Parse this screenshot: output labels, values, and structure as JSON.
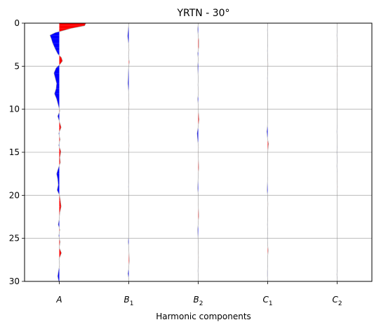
{
  "chart_data": {
    "type": "area",
    "title": "YRTN - 30°",
    "xlabel": "Harmonic components",
    "ylabel": "",
    "ylim": [
      30,
      0
    ],
    "yticks": [
      0,
      5,
      10,
      15,
      20,
      25,
      30
    ],
    "grid": "horizontal",
    "positive_color": "#ff0000",
    "negative_color": "#0000ff",
    "series": [
      {
        "label": "A",
        "sub": "",
        "trace": [
          [
            0.0,
            1.0
          ],
          [
            0.3,
            0.95
          ],
          [
            0.6,
            0.45
          ],
          [
            0.9,
            0.1
          ],
          [
            1.1,
            -0.15
          ],
          [
            1.4,
            -0.35
          ],
          [
            1.8,
            -0.3
          ],
          [
            2.3,
            -0.25
          ],
          [
            2.8,
            -0.18
          ],
          [
            3.2,
            -0.12
          ],
          [
            3.6,
            -0.05
          ],
          [
            4.0,
            0.08
          ],
          [
            4.4,
            0.12
          ],
          [
            4.8,
            0.02
          ],
          [
            5.2,
            -0.12
          ],
          [
            5.8,
            -0.2
          ],
          [
            6.4,
            -0.15
          ],
          [
            7.0,
            -0.1
          ],
          [
            7.6,
            -0.12
          ],
          [
            8.2,
            -0.18
          ],
          [
            8.8,
            -0.1
          ],
          [
            9.5,
            -0.04
          ],
          [
            10.2,
            0.02
          ],
          [
            10.8,
            -0.06
          ],
          [
            11.4,
            0.0
          ],
          [
            12.1,
            0.07
          ],
          [
            12.8,
            -0.02
          ],
          [
            13.5,
            0.03
          ],
          [
            14.2,
            -0.02
          ],
          [
            14.9,
            0.06
          ],
          [
            15.6,
            0.02
          ],
          [
            16.2,
            0.04
          ],
          [
            16.8,
            -0.03
          ],
          [
            17.5,
            -0.1
          ],
          [
            18.1,
            -0.06
          ],
          [
            18.8,
            -0.04
          ],
          [
            19.4,
            -0.08
          ],
          [
            20.0,
            0.01
          ],
          [
            20.6,
            0.04
          ],
          [
            21.3,
            0.07
          ],
          [
            22.0,
            0.02
          ],
          [
            22.7,
            0.0
          ],
          [
            23.4,
            -0.04
          ],
          [
            24.0,
            0.02
          ],
          [
            24.7,
            -0.02
          ],
          [
            25.4,
            0.03
          ],
          [
            26.1,
            0.0
          ],
          [
            26.7,
            0.08
          ],
          [
            27.4,
            -0.01
          ],
          [
            28.1,
            0.01
          ],
          [
            28.8,
            -0.03
          ],
          [
            29.4,
            -0.06
          ],
          [
            30.0,
            -0.02
          ]
        ]
      },
      {
        "label": "B",
        "sub": "1",
        "trace": [
          [
            0.0,
            0.0
          ],
          [
            0.8,
            -0.02
          ],
          [
            1.5,
            -0.04
          ],
          [
            2.3,
            -0.01
          ],
          [
            3.1,
            0.01
          ],
          [
            3.8,
            -0.01
          ],
          [
            4.5,
            0.02
          ],
          [
            5.3,
            -0.01
          ],
          [
            6.2,
            -0.02
          ],
          [
            7.0,
            -0.03
          ],
          [
            7.8,
            -0.01
          ],
          [
            8.6,
            0.0
          ],
          [
            9.4,
            0.01
          ],
          [
            10.2,
            0.0
          ],
          [
            11.0,
            -0.01
          ],
          [
            11.8,
            0.0
          ],
          [
            12.6,
            -0.01
          ],
          [
            13.4,
            0.0
          ],
          [
            14.2,
            0.01
          ],
          [
            15.0,
            0.0
          ],
          [
            15.8,
            0.0
          ],
          [
            16.6,
            0.0
          ],
          [
            17.4,
            0.0
          ],
          [
            18.2,
            0.0
          ],
          [
            19.0,
            -0.01
          ],
          [
            19.8,
            0.0
          ],
          [
            20.6,
            0.0
          ],
          [
            21.4,
            0.0
          ],
          [
            22.2,
            0.0
          ],
          [
            23.0,
            0.0
          ],
          [
            23.8,
            0.0
          ],
          [
            24.6,
            0.0
          ],
          [
            25.4,
            -0.02
          ],
          [
            26.1,
            0.0
          ],
          [
            26.8,
            0.01
          ],
          [
            27.6,
            0.02
          ],
          [
            28.4,
            0.0
          ],
          [
            29.1,
            -0.03
          ],
          [
            29.7,
            0.0
          ],
          [
            30.0,
            0.0
          ]
        ]
      },
      {
        "label": "B",
        "sub": "2",
        "trace": [
          [
            0.0,
            0.0
          ],
          [
            0.7,
            -0.02
          ],
          [
            1.2,
            -0.01
          ],
          [
            2.0,
            0.02
          ],
          [
            2.8,
            0.02
          ],
          [
            3.5,
            -0.02
          ],
          [
            4.2,
            0.0
          ],
          [
            5.0,
            -0.02
          ],
          [
            5.8,
            -0.01
          ],
          [
            6.5,
            0.0
          ],
          [
            7.2,
            -0.01
          ],
          [
            8.0,
            0.01
          ],
          [
            8.8,
            -0.02
          ],
          [
            9.6,
            0.0
          ],
          [
            10.4,
            0.01
          ],
          [
            11.2,
            0.03
          ],
          [
            12.0,
            0.0
          ],
          [
            12.8,
            -0.04
          ],
          [
            13.6,
            -0.02
          ],
          [
            14.4,
            0.01
          ],
          [
            15.2,
            0.0
          ],
          [
            16.0,
            0.01
          ],
          [
            16.8,
            0.02
          ],
          [
            17.6,
            0.0
          ],
          [
            18.4,
            -0.01
          ],
          [
            19.2,
            -0.02
          ],
          [
            20.0,
            0.0
          ],
          [
            20.8,
            0.0
          ],
          [
            21.6,
            0.01
          ],
          [
            22.4,
            0.02
          ],
          [
            23.2,
            0.0
          ],
          [
            24.0,
            -0.02
          ],
          [
            24.8,
            -0.01
          ],
          [
            25.6,
            0.0
          ],
          [
            26.4,
            0.0
          ],
          [
            27.2,
            0.01
          ],
          [
            28.0,
            0.0
          ],
          [
            28.8,
            -0.01
          ],
          [
            29.4,
            0.0
          ],
          [
            30.0,
            0.0
          ]
        ]
      },
      {
        "label": "C",
        "sub": "1",
        "trace": [
          [
            0.0,
            0.0
          ],
          [
            0.8,
            -0.01
          ],
          [
            1.6,
            0.0
          ],
          [
            2.4,
            0.0
          ],
          [
            3.2,
            -0.01
          ],
          [
            4.0,
            0.0
          ],
          [
            4.8,
            0.01
          ],
          [
            5.6,
            0.0
          ],
          [
            6.4,
            -0.01
          ],
          [
            7.2,
            0.0
          ],
          [
            8.0,
            0.0
          ],
          [
            8.8,
            0.0
          ],
          [
            9.6,
            0.0
          ],
          [
            10.4,
            0.0
          ],
          [
            11.2,
            0.0
          ],
          [
            12.0,
            -0.01
          ],
          [
            12.6,
            -0.03
          ],
          [
            13.3,
            -0.01
          ],
          [
            14.0,
            0.03
          ],
          [
            14.7,
            0.01
          ],
          [
            15.4,
            0.0
          ],
          [
            16.2,
            0.0
          ],
          [
            17.0,
            0.0
          ],
          [
            17.8,
            0.0
          ],
          [
            18.6,
            -0.01
          ],
          [
            19.4,
            -0.02
          ],
          [
            20.2,
            0.0
          ],
          [
            21.0,
            0.01
          ],
          [
            21.8,
            0.0
          ],
          [
            22.6,
            0.0
          ],
          [
            23.4,
            -0.01
          ],
          [
            24.2,
            0.0
          ],
          [
            25.0,
            -0.01
          ],
          [
            25.7,
            0.0
          ],
          [
            26.4,
            0.02
          ],
          [
            27.2,
            0.0
          ],
          [
            28.0,
            0.0
          ],
          [
            28.8,
            -0.01
          ],
          [
            29.4,
            -0.01
          ],
          [
            30.0,
            0.0
          ]
        ]
      },
      {
        "label": "C",
        "sub": "2",
        "trace": [
          [
            0.0,
            0.0
          ],
          [
            0.8,
            0.0
          ],
          [
            1.4,
            -0.01
          ],
          [
            2.2,
            0.0
          ],
          [
            3.0,
            0.0
          ],
          [
            3.8,
            0.01
          ],
          [
            4.6,
            0.0
          ],
          [
            5.4,
            0.01
          ],
          [
            6.2,
            0.0
          ],
          [
            7.0,
            0.0
          ],
          [
            7.8,
            0.0
          ],
          [
            8.6,
            0.0
          ],
          [
            9.4,
            0.0
          ],
          [
            10.2,
            0.0
          ],
          [
            11.0,
            0.0
          ],
          [
            11.8,
            0.0
          ],
          [
            12.6,
            -0.01
          ],
          [
            13.4,
            0.0
          ],
          [
            14.2,
            0.0
          ],
          [
            15.0,
            -0.01
          ],
          [
            15.8,
            0.0
          ],
          [
            16.6,
            -0.01
          ],
          [
            17.4,
            0.0
          ],
          [
            18.2,
            0.0
          ],
          [
            19.0,
            0.01
          ],
          [
            19.8,
            0.0
          ],
          [
            20.6,
            0.0
          ],
          [
            21.4,
            0.0
          ],
          [
            22.2,
            0.0
          ],
          [
            23.0,
            0.0
          ],
          [
            23.8,
            0.0
          ],
          [
            24.6,
            0.0
          ],
          [
            25.4,
            0.0
          ],
          [
            26.2,
            0.0
          ],
          [
            27.0,
            0.0
          ],
          [
            27.8,
            0.0
          ],
          [
            28.6,
            0.0
          ],
          [
            29.2,
            -0.01
          ],
          [
            29.7,
            0.0
          ],
          [
            30.0,
            0.0
          ]
        ]
      }
    ]
  }
}
